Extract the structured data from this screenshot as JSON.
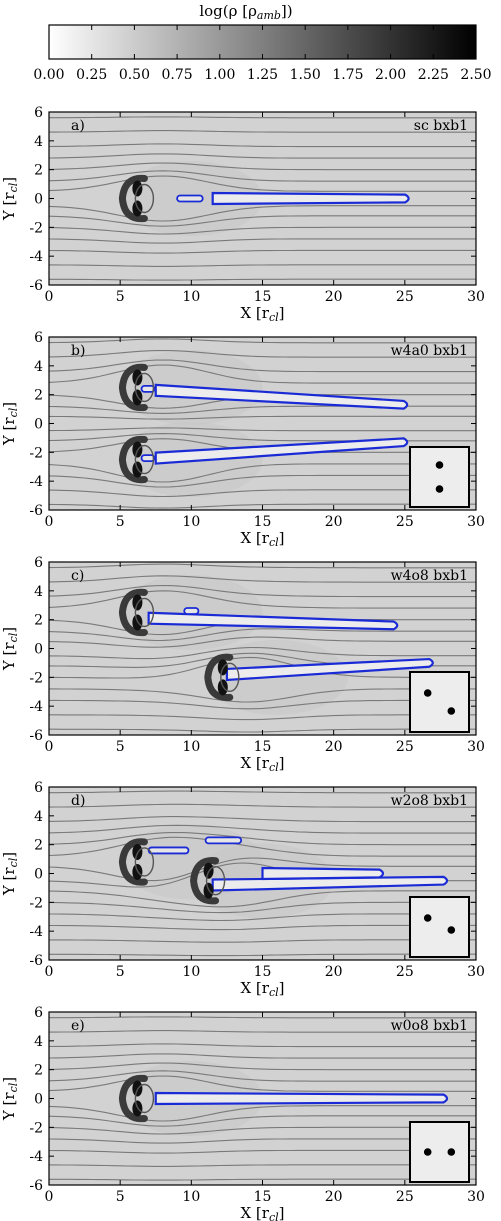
{
  "colorbar": {
    "label": "log(ρ [ρ",
    "label_sub": "amb",
    "label_end": "])",
    "ticks": [
      "0.00",
      "0.25",
      "0.50",
      "0.75",
      "1.00",
      "1.25",
      "1.50",
      "1.75",
      "2.00",
      "2.25",
      "2.50"
    ],
    "range": [
      0,
      2.5
    ],
    "colors": [
      "#ffffff",
      "#000000"
    ]
  },
  "chart_data": [
    {
      "type": "heatmap",
      "panel": "a)",
      "run": "sc bxb1",
      "xlabel": "X [r",
      "ylabel": "Y [r",
      "label_sub": "cl",
      "xlim": [
        0,
        30
      ],
      "ylim": [
        -6,
        6
      ],
      "xticks": [
        "0",
        "5",
        "10",
        "15",
        "20",
        "25",
        "30"
      ],
      "yticks": [
        "6",
        "4",
        "2",
        "0",
        "-2",
        "-4",
        "-6"
      ],
      "inset": false,
      "clouds": [
        {
          "x": 6,
          "y": 0
        }
      ],
      "tails": [
        {
          "x0": 11.5,
          "y0": 0.0,
          "x1": 25.3,
          "y1": 0.0
        }
      ],
      "knots": [
        {
          "x0": 9.0,
          "x1": 10.8,
          "y": 0.0
        }
      ]
    },
    {
      "type": "heatmap",
      "panel": "b)",
      "run": "w4a0 bxb1",
      "xlabel": "X [r",
      "ylabel": "Y [r",
      "label_sub": "cl",
      "xlim": [
        0,
        30
      ],
      "ylim": [
        -6,
        6
      ],
      "xticks": [
        "0",
        "5",
        "10",
        "15",
        "20",
        "25",
        "30"
      ],
      "yticks": [
        "6",
        "4",
        "2",
        "0",
        "-2",
        "-4",
        "-6"
      ],
      "inset": true,
      "inset_dots": [
        {
          "x": 0.5,
          "y": 0.3
        },
        {
          "x": 0.5,
          "y": 0.7
        }
      ],
      "clouds": [
        {
          "x": 6,
          "y": 2.5
        },
        {
          "x": 6,
          "y": -2.5
        }
      ],
      "tails": [
        {
          "x0": 7.5,
          "y0": 2.3,
          "x1": 25.2,
          "y1": 1.3
        },
        {
          "x0": 7.5,
          "y0": -2.4,
          "x1": 25.2,
          "y1": -1.3
        }
      ],
      "knots": [
        {
          "x0": 6.5,
          "x1": 7.4,
          "y": 2.4
        },
        {
          "x0": 6.5,
          "x1": 7.4,
          "y": -2.4
        }
      ]
    },
    {
      "type": "heatmap",
      "panel": "c)",
      "run": "w4o8 bxb1",
      "xlabel": "X [r",
      "ylabel": "Y [r",
      "label_sub": "cl",
      "xlim": [
        0,
        30
      ],
      "ylim": [
        -6,
        6
      ],
      "xticks": [
        "0",
        "5",
        "10",
        "15",
        "20",
        "25",
        "30"
      ],
      "yticks": [
        "6",
        "4",
        "2",
        "0",
        "-2",
        "-4",
        "-6"
      ],
      "inset": true,
      "inset_dots": [
        {
          "x": 0.3,
          "y": 0.35
        },
        {
          "x": 0.7,
          "y": 0.65
        }
      ],
      "clouds": [
        {
          "x": 6,
          "y": 2.5
        },
        {
          "x": 12,
          "y": -2
        }
      ],
      "tails": [
        {
          "x0": 7.0,
          "y0": 2.1,
          "x1": 24.5,
          "y1": 1.6
        },
        {
          "x0": 12.5,
          "y0": -1.8,
          "x1": 27.0,
          "y1": -1.0
        }
      ],
      "knots": [
        {
          "x0": 9.5,
          "x1": 10.5,
          "y": 2.6
        }
      ]
    },
    {
      "type": "heatmap",
      "panel": "d)",
      "run": "w2o8 bxb1",
      "xlabel": "X [r",
      "ylabel": "Y [r",
      "label_sub": "cl",
      "xlim": [
        0,
        30
      ],
      "ylim": [
        -6,
        6
      ],
      "xticks": [
        "0",
        "5",
        "10",
        "15",
        "20",
        "25",
        "30"
      ],
      "yticks": [
        "6",
        "4",
        "2",
        "0",
        "-2",
        "-4",
        "-6"
      ],
      "inset": true,
      "inset_dots": [
        {
          "x": 0.3,
          "y": 0.35
        },
        {
          "x": 0.7,
          "y": 0.55
        }
      ],
      "clouds": [
        {
          "x": 6,
          "y": 0.8
        },
        {
          "x": 11,
          "y": -0.5
        }
      ],
      "tails": [
        {
          "x0": 11.5,
          "y0": -0.8,
          "x1": 28.0,
          "y1": -0.5
        },
        {
          "x0": 15.0,
          "y0": 0.0,
          "x1": 23.5,
          "y1": 0.0
        }
      ],
      "knots": [
        {
          "x0": 7.0,
          "x1": 9.8,
          "y": 1.6
        },
        {
          "x0": 11.0,
          "x1": 13.5,
          "y": 2.3
        }
      ]
    },
    {
      "type": "heatmap",
      "panel": "e)",
      "run": "w0o8 bxb1",
      "xlabel": "X [r",
      "ylabel": "Y [r",
      "label_sub": "cl",
      "xlim": [
        0,
        30
      ],
      "ylim": [
        -6,
        6
      ],
      "xticks": [
        "0",
        "5",
        "10",
        "15",
        "20",
        "25",
        "30"
      ],
      "yticks": [
        "6",
        "4",
        "2",
        "0",
        "-2",
        "-4",
        "-6"
      ],
      "inset": true,
      "inset_dots": [
        {
          "x": 0.3,
          "y": 0.5
        },
        {
          "x": 0.7,
          "y": 0.5
        }
      ],
      "clouds": [
        {
          "x": 6,
          "y": 0
        }
      ],
      "tails": [
        {
          "x0": 7.5,
          "y0": 0.0,
          "x1": 28.0,
          "y1": 0.0
        }
      ],
      "knots": []
    }
  ]
}
